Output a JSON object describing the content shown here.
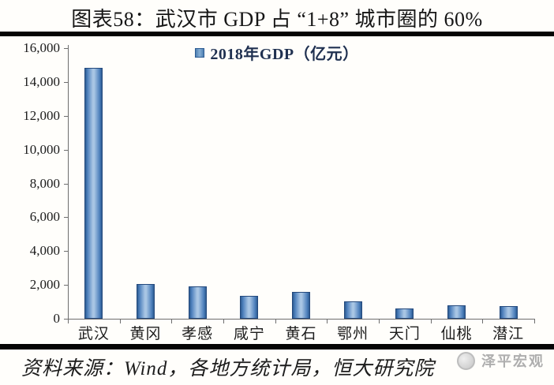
{
  "title": "图表58：武汉市 GDP 占 “1+8” 城市圈的 60%",
  "chart_data": {
    "type": "bar",
    "title": "图表58：武汉市 GDP 占 “1+8” 城市圈的 60%",
    "legend": [
      "2018年GDP（亿元）"
    ],
    "legend_position": "top-center",
    "categories": [
      "武汉",
      "黄冈",
      "孝感",
      "咸宁",
      "黄石",
      "鄂州",
      "天门",
      "仙桃",
      "潜江"
    ],
    "values": [
      14847,
      2035,
      1912,
      1362,
      1587,
      1005,
      588,
      800,
      740
    ],
    "xlabel": "",
    "ylabel": "",
    "ylim": [
      0,
      16000
    ],
    "ytick_step": 2000,
    "ytick_labels": [
      "0",
      "2,000",
      "4,000",
      "6,000",
      "8,000",
      "10,000",
      "12,000",
      "14,000",
      "16,000"
    ],
    "grid": false,
    "colors": {
      "bar_edge": "#2d5c92",
      "bar_body": "#4f81bd",
      "bar_highlight": "#a9c6e4",
      "bar_border": "#24497c",
      "legend_text": "#1f3050",
      "axis": "#6e6e6e",
      "rule": "#050505",
      "watermark": "#aeaeae"
    }
  },
  "footer": {
    "source": "资料来源：Wind，各地方统计局，恒大研究院",
    "watermark": "泽平宏观"
  }
}
